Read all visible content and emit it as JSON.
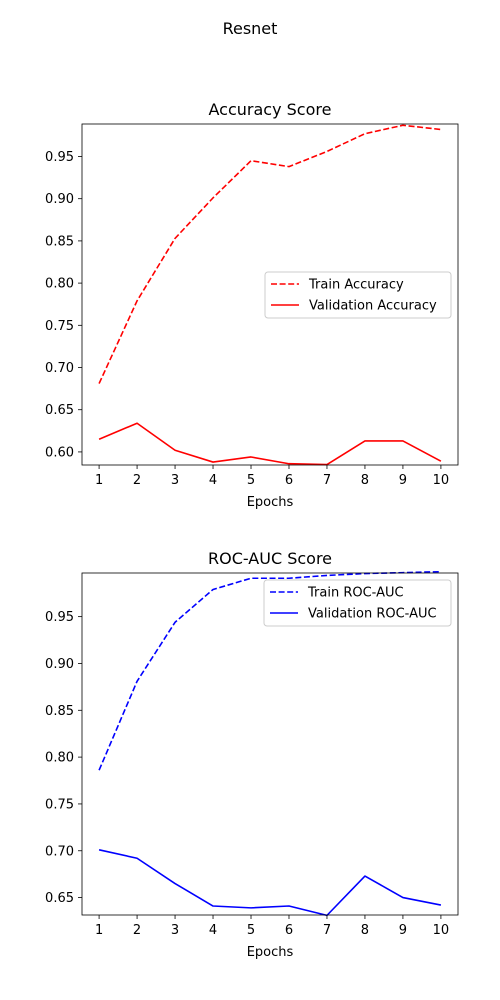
{
  "figure": {
    "suptitle": "Resnet"
  },
  "chart_data": [
    {
      "type": "line",
      "title": "Accuracy Score",
      "xlabel": "Epochs",
      "ylabel": "",
      "x": [
        1,
        2,
        3,
        4,
        5,
        6,
        7,
        8,
        9,
        10
      ],
      "xlim": [
        0.55,
        10.45
      ],
      "ylim": [
        0.5845,
        0.9885
      ],
      "yticks": [
        0.6,
        0.65,
        0.7,
        0.75,
        0.8,
        0.85,
        0.9,
        0.95
      ],
      "ytick_labels": [
        "0.60",
        "0.65",
        "0.70",
        "0.75",
        "0.80",
        "0.85",
        "0.90",
        "0.95"
      ],
      "xtick_labels": [
        "1",
        "2",
        "3",
        "4",
        "5",
        "6",
        "7",
        "8",
        "9",
        "10"
      ],
      "grid": false,
      "legend_position": "center-right",
      "series": [
        {
          "name": "Train Accuracy",
          "color": "#ff0000",
          "dashed": true,
          "values": [
            0.681,
            0.779,
            0.853,
            0.901,
            0.945,
            0.938,
            0.956,
            0.977,
            0.987,
            0.982
          ]
        },
        {
          "name": "Validation Accuracy",
          "color": "#ff0000",
          "dashed": false,
          "values": [
            0.615,
            0.634,
            0.602,
            0.588,
            0.594,
            0.586,
            0.585,
            0.613,
            0.613,
            0.589
          ]
        }
      ]
    },
    {
      "type": "line",
      "title": "ROC-AUC Score",
      "xlabel": "Epochs",
      "ylabel": "",
      "x": [
        1,
        2,
        3,
        4,
        5,
        6,
        7,
        8,
        9,
        10
      ],
      "xlim": [
        0.55,
        10.45
      ],
      "ylim": [
        0.6314,
        0.9966
      ],
      "yticks": [
        0.65,
        0.7,
        0.75,
        0.8,
        0.85,
        0.9,
        0.95
      ],
      "ytick_labels": [
        "0.65",
        "0.70",
        "0.75",
        "0.80",
        "0.85",
        "0.90",
        "0.95"
      ],
      "xtick_labels": [
        "1",
        "2",
        "3",
        "4",
        "5",
        "6",
        "7",
        "8",
        "9",
        "10"
      ],
      "grid": false,
      "legend_position": "upper-right",
      "series": [
        {
          "name": "Train ROC-AUC",
          "color": "#0000ff",
          "dashed": true,
          "values": [
            0.786,
            0.881,
            0.944,
            0.979,
            0.991,
            0.991,
            0.994,
            0.996,
            0.997,
            0.998
          ]
        },
        {
          "name": "Validation ROC-AUC",
          "color": "#0000ff",
          "dashed": false,
          "values": [
            0.701,
            0.692,
            0.665,
            0.641,
            0.639,
            0.641,
            0.631,
            0.673,
            0.65,
            0.642
          ]
        }
      ]
    }
  ]
}
